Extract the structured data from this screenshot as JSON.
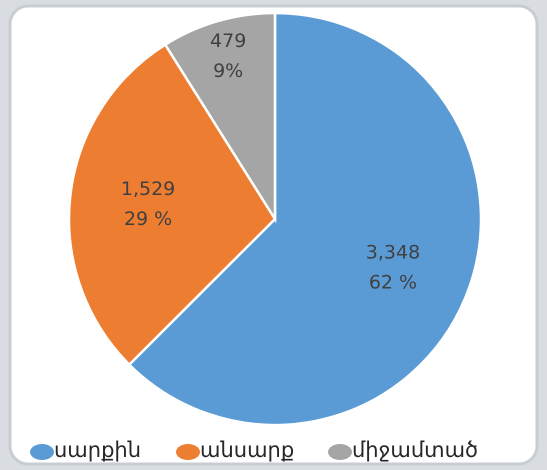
{
  "chart_data": {
    "type": "pie",
    "categories": [
      "սարքին",
      "անսարք",
      "միջամտած"
    ],
    "values": [
      3348,
      1529,
      479
    ],
    "value_labels": [
      "3,348",
      "1,529",
      "479"
    ],
    "percent_labels": [
      "62 %",
      "29 %",
      "9%"
    ],
    "colors": [
      "#5b9bd5",
      "#ed7d31",
      "#a5a5a5"
    ],
    "legend": "bottom"
  }
}
